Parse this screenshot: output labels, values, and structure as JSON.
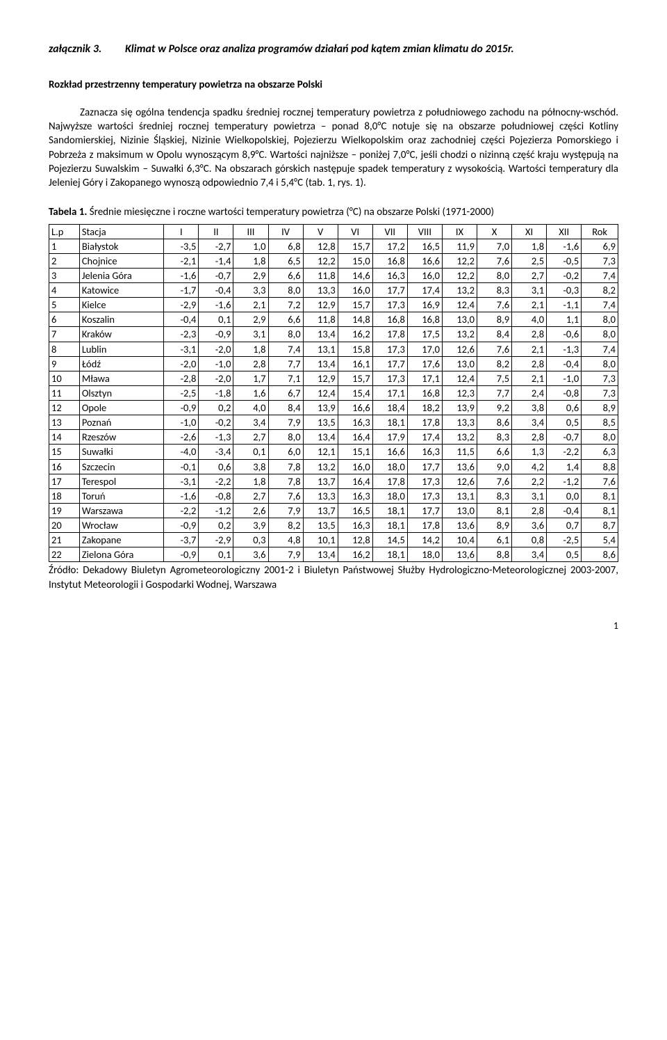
{
  "attachment": {
    "label": "załącznik 3.",
    "title": "Klimat w Polsce oraz analiza programów działań pod kątem zmian klimatu do 2015r."
  },
  "heading": "Rozkład przestrzenny temperatury powietrza na obszarze Polski",
  "paragraph": "Zaznacza się ogólna tendencja spadku średniej rocznej temperatury powietrza z południowego zachodu na północny-wschód. Najwyższe wartości średniej rocznej temperatury powietrza – ponad 8,0°C notuje się na obszarze południowej części Kotliny Sandomierskiej, Nizinie Śląskiej, Nizinie Wielkopolskiej, Pojezierzu Wielkopolskim oraz zachodniej części Pojezierza Pomorskiego i Pobrzeża z maksimum w Opolu wynoszącym 8,9°C. Wartości najniższe – poniżej 7,0°C, jeśli chodzi o nizinną część kraju występują na Pojezierzu Suwalskim – Suwałki 6,3°C. Na obszarach górskich następuje spadek temperatury z wysokością. Wartości temperatury dla Jeleniej Góry i Zakopanego wynoszą odpowiednio 7,4 i 5,4°C (tab. 1, rys. 1).",
  "table_caption": {
    "label": "Tabela 1.",
    "text": " Średnie miesięczne i roczne wartości temperatury powietrza (°C) na obszarze Polski (1971-2000)"
  },
  "table": {
    "headers": [
      "L.p",
      "Stacja",
      "I",
      "II",
      "III",
      "IV",
      "V",
      "VI",
      "VII",
      "VIII",
      "IX",
      "X",
      "XI",
      "XII",
      "Rok"
    ],
    "rows": [
      [
        "1",
        "Białystok",
        "-3,5",
        "-2,7",
        "1,0",
        "6,8",
        "12,8",
        "15,7",
        "17,2",
        "16,5",
        "11,9",
        "7,0",
        "1,8",
        "-1,6",
        "6,9"
      ],
      [
        "2",
        "Chojnice",
        "-2,1",
        "-1,4",
        "1,8",
        "6,5",
        "12,2",
        "15,0",
        "16,8",
        "16,6",
        "12,2",
        "7,6",
        "2,5",
        "-0,5",
        "7,3"
      ],
      [
        "3",
        "Jelenia Góra",
        "-1,6",
        "-0,7",
        "2,9",
        "6,6",
        "11,8",
        "14,6",
        "16,3",
        "16,0",
        "12,2",
        "8,0",
        "2,7",
        "-0,2",
        "7,4"
      ],
      [
        "4",
        "Katowice",
        "-1,7",
        "-0,4",
        "3,3",
        "8,0",
        "13,3",
        "16,0",
        "17,7",
        "17,4",
        "13,2",
        "8,3",
        "3,1",
        "-0,3",
        "8,2"
      ],
      [
        "5",
        "Kielce",
        "-2,9",
        "-1,6",
        "2,1",
        "7,2",
        "12,9",
        "15,7",
        "17,3",
        "16,9",
        "12,4",
        "7,6",
        "2,1",
        "-1,1",
        "7,4"
      ],
      [
        "6",
        "Koszalin",
        "-0,4",
        "0,1",
        "2,9",
        "6,6",
        "11,8",
        "14,8",
        "16,8",
        "16,8",
        "13,0",
        "8,9",
        "4,0",
        "1,1",
        "8,0"
      ],
      [
        "7",
        "Kraków",
        "-2,3",
        "-0,9",
        "3,1",
        "8,0",
        "13,4",
        "16,2",
        "17,8",
        "17,5",
        "13,2",
        "8,4",
        "2,8",
        "-0,6",
        "8,0"
      ],
      [
        "8",
        "Lublin",
        "-3,1",
        "-2,0",
        "1,8",
        "7,4",
        "13,1",
        "15,8",
        "17,3",
        "17,0",
        "12,6",
        "7,6",
        "2,1",
        "-1,3",
        "7,4"
      ],
      [
        "9",
        "Łódź",
        "-2,0",
        "-1,0",
        "2,8",
        "7,7",
        "13,4",
        "16,1",
        "17,7",
        "17,6",
        "13,0",
        "8,2",
        "2,8",
        "-0,4",
        "8,0"
      ],
      [
        "10",
        "Mława",
        "-2,8",
        "-2,0",
        "1,7",
        "7,1",
        "12,9",
        "15,7",
        "17,3",
        "17,1",
        "12,4",
        "7,5",
        "2,1",
        "-1,0",
        "7,3"
      ],
      [
        "11",
        "Olsztyn",
        "-2,5",
        "-1,8",
        "1,6",
        "6,7",
        "12,4",
        "15,4",
        "17,1",
        "16,8",
        "12,3",
        "7,7",
        "2,4",
        "-0,8",
        "7,3"
      ],
      [
        "12",
        "Opole",
        "-0,9",
        "0,2",
        "4,0",
        "8,4",
        "13,9",
        "16,6",
        "18,4",
        "18,2",
        "13,9",
        "9,2",
        "3,8",
        "0,6",
        "8,9"
      ],
      [
        "13",
        "Poznań",
        "-1,0",
        "-0,2",
        "3,4",
        "7,9",
        "13,5",
        "16,3",
        "18,1",
        "17,8",
        "13,3",
        "8,6",
        "3,4",
        "0,5",
        "8,5"
      ],
      [
        "14",
        "Rzeszów",
        "-2,6",
        "-1,3",
        "2,7",
        "8,0",
        "13,4",
        "16,4",
        "17,9",
        "17,4",
        "13,2",
        "8,3",
        "2,8",
        "-0,7",
        "8,0"
      ],
      [
        "15",
        "Suwałki",
        "-4,0",
        "-3,4",
        "0,1",
        "6,0",
        "12,1",
        "15,1",
        "16,6",
        "16,3",
        "11,5",
        "6,6",
        "1,3",
        "-2,2",
        "6,3"
      ],
      [
        "16",
        "Szczecin",
        "-0,1",
        "0,6",
        "3,8",
        "7,8",
        "13,2",
        "16,0",
        "18,0",
        "17,7",
        "13,6",
        "9,0",
        "4,2",
        "1,4",
        "8,8"
      ],
      [
        "17",
        "Terespol",
        "-3,1",
        "-2,2",
        "1,8",
        "7,8",
        "13,7",
        "16,4",
        "17,8",
        "17,3",
        "12,6",
        "7,6",
        "2,2",
        "-1,2",
        "7,6"
      ],
      [
        "18",
        "Toruń",
        "-1,6",
        "-0,8",
        "2,7",
        "7,6",
        "13,3",
        "16,3",
        "18,0",
        "17,3",
        "13,1",
        "8,3",
        "3,1",
        "0,0",
        "8,1"
      ],
      [
        "19",
        "Warszawa",
        "-2,2",
        "-1,2",
        "2,6",
        "7,9",
        "13,7",
        "16,5",
        "18,1",
        "17,7",
        "13,0",
        "8,1",
        "2,8",
        "-0,4",
        "8,1"
      ],
      [
        "20",
        "Wrocław",
        "-0,9",
        "0,2",
        "3,9",
        "8,2",
        "13,5",
        "16,3",
        "18,1",
        "17,8",
        "13,6",
        "8,9",
        "3,6",
        "0,7",
        "8,7"
      ],
      [
        "21",
        "Zakopane",
        "-3,7",
        "-2,9",
        "0,3",
        "4,8",
        "10,1",
        "12,8",
        "14,5",
        "14,2",
        "10,4",
        "6,1",
        "0,8",
        "-2,5",
        "5,4"
      ],
      [
        "22",
        "Zielona Góra",
        "-0,9",
        "0,1",
        "3,6",
        "7,9",
        "13,4",
        "16,2",
        "18,1",
        "18,0",
        "13,6",
        "8,8",
        "3,4",
        "0,5",
        "8,6"
      ]
    ]
  },
  "source": "Źródło: Dekadowy Biuletyn Agrometeorologiczny 2001-2 i Biuletyn Państwowej Służby Hydrologiczno-Meteorologicznej 2003-2007, Instytut Meteorologii i Gospodarki Wodnej, Warszawa",
  "page_number": "1"
}
